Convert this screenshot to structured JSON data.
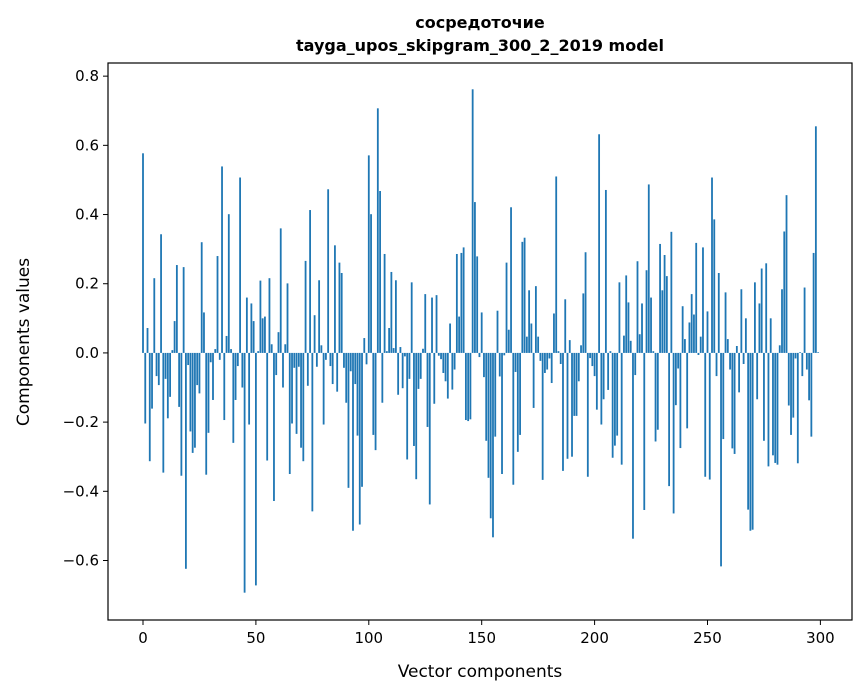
{
  "chart_data": {
    "type": "bar",
    "title": "сосредоточие",
    "subtitle": "tayga_upos_skipgram_300_2_2019 model",
    "xlabel": "Vector components",
    "ylabel": "Components values",
    "xlim": [
      -15.5,
      314
    ],
    "ylim": [
      -0.772,
      0.838
    ],
    "xticks": [
      0,
      50,
      100,
      150,
      200,
      250,
      300
    ],
    "xtick_labels": [
      "0",
      "50",
      "100",
      "150",
      "200",
      "250",
      "300"
    ],
    "yticks": [
      0.8,
      0.6,
      0.4,
      0.2,
      0.0,
      -0.2,
      -0.4,
      -0.6
    ],
    "ytick_labels": [
      "0.8",
      "0.6",
      "0.4",
      "0.2",
      "0.0",
      "−0.2",
      "−0.4",
      "−0.6"
    ],
    "grid": false,
    "bar_color": "#1f77b4",
    "values": [
      0.577,
      -0.204,
      0.072,
      -0.313,
      -0.161,
      0.216,
      -0.067,
      -0.093,
      0.343,
      -0.346,
      -0.075,
      -0.189,
      -0.127,
      0.008,
      0.092,
      0.254,
      -0.156,
      -0.355,
      0.248,
      -0.624,
      -0.035,
      -0.227,
      -0.289,
      -0.274,
      -0.093,
      -0.117,
      0.32,
      0.117,
      -0.352,
      -0.231,
      -0.027,
      -0.136,
      0.011,
      0.28,
      -0.02,
      0.539,
      -0.194,
      0.049,
      0.401,
      0.011,
      -0.26,
      -0.136,
      -0.038,
      0.507,
      -0.1,
      -0.693,
      0.16,
      -0.207,
      0.143,
      0.092,
      -0.672,
      0.005,
      0.209,
      0.1,
      0.105,
      -0.311,
      0.216,
      0.025,
      -0.428,
      -0.064,
      0.06,
      0.36,
      -0.1,
      0.025,
      0.201,
      -0.35,
      -0.204,
      -0.043,
      -0.234,
      -0.04,
      -0.274,
      -0.313,
      0.266,
      -0.095,
      0.413,
      -0.458,
      0.109,
      -0.04,
      0.21,
      0.022,
      -0.207,
      -0.02,
      0.473,
      -0.038,
      -0.09,
      0.311,
      -0.112,
      0.261,
      0.231,
      -0.043,
      -0.144,
      -0.39,
      -0.053,
      -0.514,
      -0.09,
      -0.239,
      -0.496,
      -0.387,
      0.043,
      -0.033,
      0.571,
      0.401,
      -0.237,
      -0.281,
      0.707,
      0.468,
      -0.144,
      0.286,
      0.005,
      0.072,
      0.234,
      0.014,
      0.21,
      -0.121,
      0.017,
      -0.102,
      -0.01,
      -0.308,
      -0.075,
      0.204,
      -0.269,
      -0.365,
      -0.104,
      -0.075,
      0.012,
      0.17,
      -0.214,
      -0.438,
      0.16,
      -0.147,
      0.167,
      -0.008,
      -0.018,
      -0.058,
      -0.082,
      -0.132,
      0.085,
      -0.106,
      -0.048,
      0.286,
      0.105,
      0.289,
      0.305,
      -0.194,
      -0.197,
      -0.192,
      0.762,
      0.436,
      0.279,
      -0.012,
      0.117,
      -0.07,
      -0.254,
      -0.361,
      -0.478,
      -0.533,
      -0.242,
      0.122,
      -0.068,
      -0.35,
      -0.007,
      0.261,
      0.067,
      0.421,
      -0.381,
      -0.055,
      -0.286,
      -0.237,
      0.321,
      0.333,
      0.047,
      0.181,
      0.085,
      -0.159,
      0.193,
      0.047,
      -0.023,
      -0.367,
      -0.058,
      -0.048,
      -0.016,
      -0.087,
      0.114,
      0.51,
      0.005,
      -0.032,
      -0.341,
      0.155,
      -0.306,
      0.037,
      -0.3,
      -0.182,
      -0.182,
      -0.082,
      0.022,
      0.172,
      0.291,
      -0.358,
      -0.015,
      -0.038,
      -0.067,
      -0.164,
      0.632,
      -0.207,
      -0.134,
      0.471,
      -0.107,
      0.005,
      -0.303,
      -0.268,
      -0.239,
      0.204,
      -0.323,
      0.05,
      0.224,
      0.146,
      0.035,
      -0.537,
      -0.064,
      0.265,
      0.054,
      0.143,
      -0.454,
      0.239,
      0.487,
      0.16,
      0.005,
      -0.256,
      -0.222,
      0.315,
      0.181,
      0.283,
      0.222,
      -0.385,
      0.35,
      -0.464,
      -0.151,
      -0.045,
      -0.275,
      0.135,
      0.04,
      -0.218,
      0.088,
      0.17,
      0.111,
      0.318,
      -0.006,
      0.047,
      0.305,
      -0.358,
      0.12,
      -0.366,
      0.507,
      0.386,
      -0.067,
      0.231,
      -0.617,
      -0.249,
      0.175,
      0.04,
      -0.048,
      -0.276,
      -0.292,
      0.02,
      -0.114,
      0.184,
      -0.032,
      0.1,
      -0.453,
      -0.514,
      -0.511,
      0.204,
      -0.134,
      0.143,
      0.244,
      -0.254,
      0.259,
      -0.328,
      0.1,
      -0.296,
      -0.318,
      -0.323,
      0.022,
      0.184,
      0.351,
      0.456,
      -0.152,
      -0.237,
      -0.187,
      -0.016,
      -0.319,
      0.002,
      -0.067,
      0.189,
      -0.048,
      -0.137,
      -0.242,
      0.289,
      0.655,
      0.002
    ]
  }
}
